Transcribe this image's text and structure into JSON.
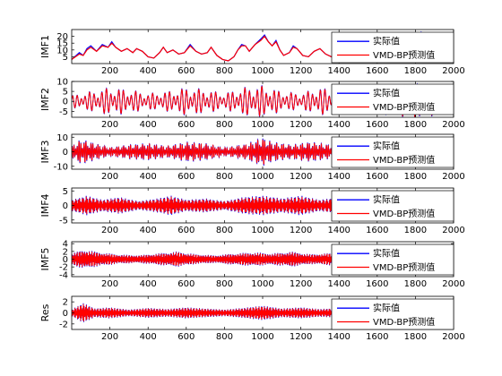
{
  "chart_data": [
    {
      "type": "line",
      "ylabel": "IMF1",
      "xlim": [
        0,
        2000
      ],
      "ylim": [
        0,
        25
      ],
      "yticks": [
        5,
        10,
        15,
        20
      ],
      "xticks": [
        200,
        400,
        600,
        800,
        1000,
        1200,
        1400,
        1600,
        1800,
        2000
      ],
      "legend": {
        "placement": "right",
        "entries": [
          "实际值",
          "VMD-BP预测值"
        ]
      },
      "series": [
        {
          "name": "实际值",
          "color": "#0000ff",
          "values": [
            [
              0,
              3
            ],
            [
              40,
              8
            ],
            [
              60,
              6
            ],
            [
              80,
              11
            ],
            [
              100,
              13
            ],
            [
              130,
              9
            ],
            [
              160,
              14
            ],
            [
              190,
              12
            ],
            [
              210,
              16
            ],
            [
              230,
              12
            ],
            [
              260,
              9
            ],
            [
              290,
              11
            ],
            [
              320,
              8
            ],
            [
              340,
              11
            ],
            [
              370,
              9
            ],
            [
              400,
              5
            ],
            [
              430,
              4
            ],
            [
              460,
              8
            ],
            [
              480,
              12
            ],
            [
              500,
              8
            ],
            [
              530,
              10
            ],
            [
              560,
              7
            ],
            [
              590,
              8
            ],
            [
              620,
              14
            ],
            [
              650,
              9
            ],
            [
              680,
              7
            ],
            [
              710,
              8
            ],
            [
              730,
              12
            ],
            [
              760,
              6
            ],
            [
              790,
              3
            ],
            [
              820,
              2
            ],
            [
              850,
              5
            ],
            [
              870,
              10
            ],
            [
              890,
              14
            ],
            [
              910,
              13
            ],
            [
              930,
              9
            ],
            [
              960,
              14
            ],
            [
              990,
              18
            ],
            [
              1010,
              21
            ],
            [
              1030,
              16
            ],
            [
              1050,
              13
            ],
            [
              1070,
              17
            ],
            [
              1090,
              10
            ],
            [
              1110,
              6
            ],
            [
              1140,
              8
            ],
            [
              1160,
              13
            ],
            [
              1180,
              11
            ],
            [
              1210,
              6
            ],
            [
              1240,
              5
            ],
            [
              1270,
              9
            ],
            [
              1300,
              11
            ],
            [
              1330,
              7
            ],
            [
              1360,
              5
            ],
            [
              1390,
              8
            ],
            [
              1420,
              10
            ],
            [
              1460,
              8
            ],
            [
              1500,
              12
            ],
            [
              1540,
              9
            ],
            [
              1580,
              10
            ],
            [
              1620,
              13
            ],
            [
              1660,
              8
            ],
            [
              1700,
              11
            ],
            [
              1740,
              9
            ],
            [
              1780,
              14
            ],
            [
              1810,
              18
            ],
            [
              1830,
              23
            ],
            [
              1850,
              16
            ],
            [
              1880,
              8
            ],
            [
              1920,
              6
            ],
            [
              1960,
              10
            ],
            [
              2000,
              13
            ]
          ]
        },
        {
          "name": "VMD-BP预测值",
          "color": "#ff0000",
          "values": [
            [
              0,
              3
            ],
            [
              40,
              7
            ],
            [
              60,
              6
            ],
            [
              80,
              10
            ],
            [
              100,
              12
            ],
            [
              130,
              9
            ],
            [
              160,
              13
            ],
            [
              190,
              12
            ],
            [
              210,
              15
            ],
            [
              230,
              12
            ],
            [
              260,
              9
            ],
            [
              290,
              11
            ],
            [
              320,
              8
            ],
            [
              340,
              11
            ],
            [
              370,
              9
            ],
            [
              400,
              5
            ],
            [
              430,
              4
            ],
            [
              460,
              8
            ],
            [
              480,
              12
            ],
            [
              500,
              8
            ],
            [
              530,
              10
            ],
            [
              560,
              7
            ],
            [
              590,
              8
            ],
            [
              620,
              13
            ],
            [
              650,
              9
            ],
            [
              680,
              7
            ],
            [
              710,
              8
            ],
            [
              730,
              12
            ],
            [
              760,
              6
            ],
            [
              790,
              3
            ],
            [
              820,
              2
            ],
            [
              850,
              5
            ],
            [
              870,
              10
            ],
            [
              890,
              13
            ],
            [
              910,
              13
            ],
            [
              930,
              9
            ],
            [
              960,
              14
            ],
            [
              990,
              17
            ],
            [
              1010,
              20
            ],
            [
              1030,
              16
            ],
            [
              1050,
              13
            ],
            [
              1070,
              16
            ],
            [
              1090,
              10
            ],
            [
              1110,
              6
            ],
            [
              1140,
              8
            ],
            [
              1160,
              12
            ],
            [
              1180,
              11
            ],
            [
              1210,
              6
            ],
            [
              1240,
              5
            ],
            [
              1270,
              9
            ],
            [
              1300,
              11
            ],
            [
              1330,
              7
            ],
            [
              1360,
              5
            ],
            [
              1390,
              8
            ],
            [
              1420,
              10
            ],
            [
              1460,
              8
            ],
            [
              1500,
              12
            ],
            [
              1540,
              9
            ],
            [
              1580,
              10
            ],
            [
              1620,
              12
            ],
            [
              1660,
              8
            ],
            [
              1700,
              11
            ],
            [
              1740,
              9
            ],
            [
              1780,
              13
            ],
            [
              1810,
              16
            ],
            [
              1830,
              17
            ],
            [
              1850,
              15
            ],
            [
              1880,
              8
            ],
            [
              1920,
              6
            ],
            [
              1960,
              10
            ],
            [
              2000,
              12
            ]
          ]
        }
      ]
    },
    {
      "type": "line",
      "ylabel": "IMF2",
      "xlim": [
        0,
        2000
      ],
      "ylim": [
        -8,
        10
      ],
      "yticks": [
        -5,
        0,
        5,
        10
      ],
      "xticks": [
        200,
        400,
        600,
        800,
        1000,
        1200,
        1400,
        1600,
        1800,
        2000
      ],
      "legend": {
        "placement": "right",
        "entries": [
          "实际值",
          "VMD-BP预测值"
        ]
      },
      "signal": {
        "kind": "oscillation",
        "period": 22,
        "envelope": [
          [
            0,
            3
          ],
          [
            100,
            5
          ],
          [
            200,
            7
          ],
          [
            300,
            6
          ],
          [
            400,
            4
          ],
          [
            500,
            5
          ],
          [
            600,
            7
          ],
          [
            700,
            6
          ],
          [
            800,
            4
          ],
          [
            900,
            7
          ],
          [
            1000,
            8
          ],
          [
            1100,
            5
          ],
          [
            1200,
            4
          ],
          [
            1300,
            7
          ],
          [
            1400,
            5
          ],
          [
            1600,
            6
          ],
          [
            1800,
            9
          ],
          [
            2000,
            5
          ]
        ],
        "series": [
          {
            "name": "实际值",
            "color": "#0000ff",
            "gain": 1.0
          },
          {
            "name": "VMD-BP预测值",
            "color": "#ff0000",
            "gain": 0.95
          }
        ]
      }
    },
    {
      "type": "line",
      "ylabel": "IMF3",
      "xlim": [
        0,
        2000
      ],
      "ylim": [
        -12,
        12
      ],
      "yticks": [
        -10,
        0,
        10
      ],
      "xticks": [
        200,
        400,
        600,
        800,
        1000,
        1200,
        1400,
        1600,
        1800,
        2000
      ],
      "legend": {
        "placement": "right",
        "entries": [
          "实际值",
          "VMD-BP预测值"
        ]
      },
      "signal": {
        "kind": "oscillation",
        "period": 9,
        "envelope": [
          [
            0,
            4
          ],
          [
            50,
            9
          ],
          [
            120,
            6
          ],
          [
            200,
            3
          ],
          [
            300,
            5
          ],
          [
            400,
            6
          ],
          [
            500,
            4
          ],
          [
            600,
            7
          ],
          [
            700,
            6
          ],
          [
            800,
            3
          ],
          [
            900,
            5
          ],
          [
            1000,
            10
          ],
          [
            1050,
            7
          ],
          [
            1150,
            5
          ],
          [
            1250,
            7
          ],
          [
            1400,
            4
          ],
          [
            1600,
            5
          ],
          [
            1800,
            6
          ],
          [
            2000,
            4
          ]
        ],
        "series": [
          {
            "name": "实际值",
            "color": "#0000ff",
            "gain": 1.0
          },
          {
            "name": "VMD-BP预测值",
            "color": "#ff0000",
            "gain": 0.92
          }
        ]
      }
    },
    {
      "type": "line",
      "ylabel": "IMF4",
      "xlim": [
        0,
        2000
      ],
      "ylim": [
        -6,
        6
      ],
      "yticks": [
        -5,
        0,
        5
      ],
      "xticks": [
        200,
        400,
        600,
        800,
        1000,
        1200,
        1400,
        1600,
        1800,
        2000
      ],
      "legend": {
        "placement": "right",
        "entries": [
          "实际值",
          "VMD-BP预测值"
        ]
      },
      "signal": {
        "kind": "oscillation",
        "period": 5,
        "envelope": [
          [
            0,
            2
          ],
          [
            80,
            3.5
          ],
          [
            160,
            2
          ],
          [
            250,
            3
          ],
          [
            350,
            1.5
          ],
          [
            450,
            2.5
          ],
          [
            520,
            3.5
          ],
          [
            600,
            2
          ],
          [
            700,
            2.5
          ],
          [
            800,
            1.5
          ],
          [
            900,
            3
          ],
          [
            1000,
            3.5
          ],
          [
            1100,
            2.5
          ],
          [
            1200,
            3.5
          ],
          [
            1300,
            2
          ],
          [
            1400,
            3
          ],
          [
            1600,
            2
          ],
          [
            1800,
            3
          ],
          [
            2000,
            2
          ]
        ],
        "series": [
          {
            "name": "实际值",
            "color": "#0000ff",
            "gain": 1.0
          },
          {
            "name": "VMD-BP预测值",
            "color": "#ff0000",
            "gain": 0.9
          }
        ]
      }
    },
    {
      "type": "line",
      "ylabel": "IMF5",
      "xlim": [
        0,
        2000
      ],
      "ylim": [
        -4.5,
        4.5
      ],
      "yticks": [
        -4,
        -2,
        0,
        2,
        4
      ],
      "xticks": [
        200,
        400,
        600,
        800,
        1000,
        1200,
        1400,
        1600,
        1800,
        2000
      ],
      "legend": {
        "placement": "right",
        "entries": [
          "实际值",
          "VMD-BP预测值"
        ]
      },
      "signal": {
        "kind": "oscillation",
        "period": 3.5,
        "envelope": [
          [
            0,
            1.5
          ],
          [
            60,
            2.5
          ],
          [
            150,
            1.8
          ],
          [
            250,
            1.2
          ],
          [
            350,
            1.0
          ],
          [
            450,
            1.5
          ],
          [
            550,
            2.0
          ],
          [
            650,
            1.3
          ],
          [
            750,
            1.0
          ],
          [
            850,
            1.5
          ],
          [
            950,
            1.8
          ],
          [
            1050,
            1.5
          ],
          [
            1150,
            2.0
          ],
          [
            1250,
            1.3
          ],
          [
            1350,
            1.6
          ],
          [
            1500,
            1.2
          ],
          [
            1700,
            1.5
          ],
          [
            2000,
            1.3
          ]
        ],
        "series": [
          {
            "name": "实际值",
            "color": "#0000ff",
            "gain": 1.0
          },
          {
            "name": "VMD-BP预测值",
            "color": "#ff0000",
            "gain": 0.92
          }
        ]
      }
    },
    {
      "type": "line",
      "ylabel": "Res",
      "xlim": [
        0,
        2000
      ],
      "ylim": [
        -3,
        3
      ],
      "yticks": [
        -2,
        0,
        2
      ],
      "xticks": [
        200,
        400,
        600,
        800,
        1000,
        1200,
        1400,
        1600,
        1800,
        2000
      ],
      "legend": {
        "placement": "right",
        "entries": [
          "实际值",
          "VMD-BP预测值"
        ]
      },
      "signal": {
        "kind": "oscillation",
        "period": 4,
        "envelope": [
          [
            0,
            0.6
          ],
          [
            60,
            1.8
          ],
          [
            120,
            0.8
          ],
          [
            200,
            1.0
          ],
          [
            300,
            0.6
          ],
          [
            400,
            0.9
          ],
          [
            500,
            0.7
          ],
          [
            600,
            1.0
          ],
          [
            700,
            0.8
          ],
          [
            800,
            0.6
          ],
          [
            900,
            0.9
          ],
          [
            1000,
            1.3
          ],
          [
            1100,
            0.8
          ],
          [
            1200,
            1.0
          ],
          [
            1300,
            0.7
          ],
          [
            1400,
            0.9
          ],
          [
            1600,
            0.8
          ],
          [
            1800,
            1.0
          ],
          [
            2000,
            0.8
          ]
        ],
        "series": [
          {
            "name": "实际值",
            "color": "#0000ff",
            "gain": 1.0
          },
          {
            "name": "VMD-BP预测值",
            "color": "#ff0000",
            "gain": 0.92
          }
        ]
      }
    }
  ]
}
